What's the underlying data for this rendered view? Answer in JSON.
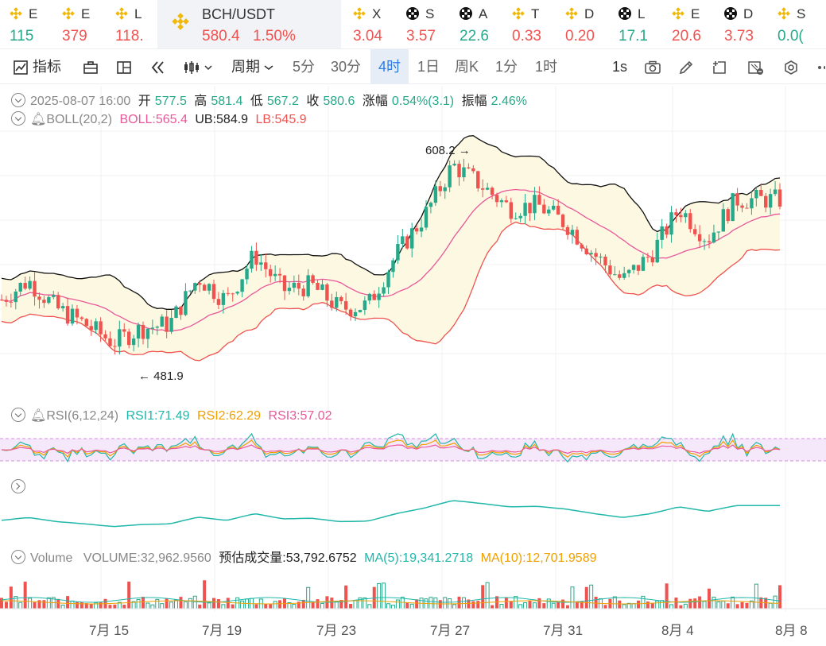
{
  "tickers": [
    {
      "sym": "E",
      "price": "115",
      "dir": "green",
      "icon": "binance-icon"
    },
    {
      "sym": "E",
      "price": "379",
      "dir": "red",
      "icon": "binance-icon"
    },
    {
      "sym": "L",
      "price": "118.",
      "dir": "red",
      "icon": "binance-icon"
    },
    {
      "sym": "X",
      "price": "3.04",
      "dir": "red",
      "icon": "binance-icon"
    },
    {
      "sym": "S",
      "price": "3.57",
      "dir": "red",
      "icon": "okx-icon"
    },
    {
      "sym": "A",
      "price": "22.6",
      "dir": "green",
      "icon": "okx-icon"
    },
    {
      "sym": "T",
      "price": "0.33",
      "dir": "red",
      "icon": "binance-icon"
    },
    {
      "sym": "D",
      "price": "0.20",
      "dir": "red",
      "icon": "binance-icon"
    },
    {
      "sym": "L",
      "price": "17.1",
      "dir": "green",
      "icon": "okx-icon"
    },
    {
      "sym": "E",
      "price": "20.6",
      "dir": "red",
      "icon": "binance-icon"
    },
    {
      "sym": "D",
      "price": "3.73",
      "dir": "red",
      "icon": "okx-icon"
    },
    {
      "sym": "S",
      "price": "0.0(",
      "dir": "green",
      "icon": "binance-icon"
    }
  ],
  "active_ticker": {
    "sym": "BCH/USDT",
    "price": "580.4",
    "change": "1.50%"
  },
  "toolbar": {
    "indicators": "指标",
    "period": "周期",
    "intervals": [
      "5分",
      "30分",
      "4时",
      "1日",
      "周K",
      "1分",
      "1时"
    ],
    "selected_interval": "4时",
    "refresh": "1s"
  },
  "ohlc_legend": {
    "date": "2025-08-07 16:00",
    "open_label": "开",
    "open": "577.5",
    "high_label": "高",
    "high": "581.4",
    "low_label": "低",
    "low": "567.2",
    "close_label": "收",
    "close": "580.6",
    "change_label": "涨幅",
    "change": "0.54%(3.1)",
    "amp_label": "振幅",
    "amp": "2.46%"
  },
  "boll_legend": {
    "name": "BOLL(20,2)",
    "mid": "BOLL:565.4",
    "ub": "UB:584.9",
    "lb": "LB:545.9"
  },
  "rsi_legend": {
    "name": "RSI(6,12,24)",
    "rsi1": "RSI1:71.49",
    "rsi2": "RSI2:62.29",
    "rsi3": "RSI3:57.02"
  },
  "volume_legend": {
    "name": "Volume",
    "volume": "VOLUME:32,962.9560",
    "est": "预估成交量:53,792.6752",
    "ma5": "MA(5):19,341.2718",
    "ma10": "MA(10):12,701.9589"
  },
  "annotations": {
    "high": "608.2",
    "low": "481.9"
  },
  "x_axis": [
    "7月 15",
    "7月 19",
    "7月 23",
    "7月 27",
    "7月 31",
    "8月 4",
    "8月 8"
  ],
  "colors": {
    "up": "#26a98a",
    "down": "#ef5350",
    "boll_mid": "#e8589a",
    "boll_band": "#fdf8e1",
    "accent": "#2f7de1"
  },
  "chart_data": {
    "type": "candlestick",
    "symbol": "BCH/USDT",
    "interval": "4时",
    "x_range": [
      "2025-07-12",
      "2025-08-08"
    ],
    "x_ticks": [
      "7月 15",
      "7月 19",
      "7月 23",
      "7月 27",
      "7月 31",
      "8月 4",
      "8月 8"
    ],
    "close_trend": [
      {
        "date": "2025-07-12",
        "close": 515
      },
      {
        "date": "2025-07-13",
        "close": 528
      },
      {
        "date": "2025-07-14",
        "close": 510
      },
      {
        "date": "2025-07-15",
        "close": 500
      },
      {
        "date": "2025-07-16",
        "close": 488
      },
      {
        "date": "2025-07-17",
        "close": 497
      },
      {
        "date": "2025-07-18",
        "close": 500
      },
      {
        "date": "2025-07-19",
        "close": 530
      },
      {
        "date": "2025-07-20",
        "close": 515
      },
      {
        "date": "2025-07-21",
        "close": 545
      },
      {
        "date": "2025-07-22",
        "close": 522
      },
      {
        "date": "2025-07-23",
        "close": 525
      },
      {
        "date": "2025-07-24",
        "close": 510
      },
      {
        "date": "2025-07-25",
        "close": 512
      },
      {
        "date": "2025-07-26",
        "close": 545
      },
      {
        "date": "2025-07-27",
        "close": 570
      },
      {
        "date": "2025-07-28",
        "close": 603
      },
      {
        "date": "2025-07-29",
        "close": 590
      },
      {
        "date": "2025-07-30",
        "close": 575
      },
      {
        "date": "2025-07-31",
        "close": 577
      },
      {
        "date": "2025-08-01",
        "close": 565
      },
      {
        "date": "2025-08-02",
        "close": 545
      },
      {
        "date": "2025-08-03",
        "close": 528
      },
      {
        "date": "2025-08-04",
        "close": 545
      },
      {
        "date": "2025-08-05",
        "close": 575
      },
      {
        "date": "2025-08-06",
        "close": 555
      },
      {
        "date": "2025-08-07",
        "close": 580.6
      }
    ],
    "last_bar": {
      "date": "2025-08-07 16:00",
      "open": 577.5,
      "high": 581.4,
      "low": 567.2,
      "close": 580.6
    },
    "indicators": {
      "BOLL": {
        "params": "20,2",
        "mid": 565.4,
        "ub": 584.9,
        "lb": 545.9
      },
      "RSI": {
        "params": "6,12,24",
        "rsi1": 71.49,
        "rsi2": 62.29,
        "rsi3": 57.02
      },
      "VOLUME": {
        "volume": 32962.956,
        "estimated": 53792.6752,
        "ma5": 19341.2718,
        "ma10": 12701.9589
      }
    },
    "annotations": [
      {
        "label": "608.2",
        "kind": "high"
      },
      {
        "label": "481.9",
        "kind": "low"
      }
    ],
    "grid": true
  }
}
